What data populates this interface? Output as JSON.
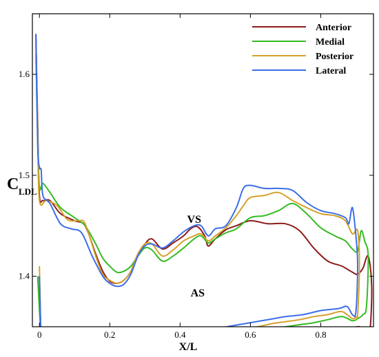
{
  "chart_data": {
    "type": "line",
    "title": "",
    "xlabel": "X/L",
    "ylabel": "C",
    "ylabel_subscript": "LDL",
    "xlim": [
      -0.02,
      0.95
    ],
    "ylim": [
      1.35,
      1.66
    ],
    "xticks": [
      0,
      0.2,
      0.4,
      0.6,
      0.8
    ],
    "xtick_labels": [
      "0",
      "0.2",
      "0.4",
      "0.6",
      "0.8"
    ],
    "yticks": [
      1.4,
      1.5,
      1.6
    ],
    "ytick_labels": [
      "1.4",
      "1.5",
      "1.6"
    ],
    "grid": false,
    "legend_position": "top-right",
    "annotations": [
      {
        "text": "VS",
        "x": 0.44,
        "y": 1.453
      },
      {
        "text": "AS",
        "x": 0.45,
        "y": 1.38
      }
    ],
    "series": [
      {
        "name": "Anterior",
        "color": "#8b1a1a",
        "upper": [
          [
            -0.01,
            1.64
          ],
          [
            -0.005,
            1.55
          ],
          [
            0,
            1.48
          ],
          [
            0.01,
            1.475
          ],
          [
            0.03,
            1.475
          ],
          [
            0.06,
            1.462
          ],
          [
            0.1,
            1.455
          ],
          [
            0.13,
            1.45
          ],
          [
            0.16,
            1.422
          ],
          [
            0.18,
            1.405
          ],
          [
            0.2,
            1.395
          ],
          [
            0.22,
            1.393
          ],
          [
            0.24,
            1.396
          ],
          [
            0.26,
            1.405
          ],
          [
            0.28,
            1.422
          ],
          [
            0.3,
            1.432
          ],
          [
            0.32,
            1.437
          ],
          [
            0.35,
            1.427
          ],
          [
            0.38,
            1.433
          ],
          [
            0.41,
            1.44
          ],
          [
            0.43,
            1.447
          ],
          [
            0.45,
            1.449
          ],
          [
            0.47,
            1.44
          ],
          [
            0.48,
            1.43
          ],
          [
            0.5,
            1.437
          ],
          [
            0.53,
            1.446
          ],
          [
            0.56,
            1.45
          ],
          [
            0.6,
            1.455
          ],
          [
            0.65,
            1.452
          ],
          [
            0.7,
            1.452
          ],
          [
            0.74,
            1.445
          ],
          [
            0.78,
            1.428
          ],
          [
            0.82,
            1.415
          ],
          [
            0.86,
            1.41
          ],
          [
            0.89,
            1.404
          ],
          [
            0.905,
            1.402
          ],
          [
            0.92,
            1.408
          ],
          [
            0.935,
            1.42
          ],
          [
            0.945,
            1.39
          ]
        ],
        "lower": [
          [
            0.945,
            1.39
          ],
          [
            0.94,
            1.346
          ],
          [
            0.93,
            1.344
          ],
          [
            0.91,
            1.35
          ],
          [
            0.88,
            1.348
          ],
          [
            0.84,
            1.347
          ],
          [
            0.8,
            1.346
          ],
          [
            0.76,
            1.344
          ],
          [
            0.72,
            1.342
          ],
          [
            0.68,
            1.341
          ],
          [
            0.64,
            1.341
          ],
          [
            0.6,
            1.34
          ],
          [
            0.56,
            1.338
          ],
          [
            0.52,
            1.336
          ],
          [
            0.5,
            1.334
          ],
          [
            0.48,
            1.333
          ],
          [
            0.44,
            1.337
          ],
          [
            0.4,
            1.338
          ],
          [
            0.36,
            1.336
          ],
          [
            0.32,
            1.337
          ],
          [
            0.28,
            1.333
          ],
          [
            0.24,
            1.331
          ],
          [
            0.2,
            1.334
          ],
          [
            0.16,
            1.336
          ],
          [
            0.12,
            1.334
          ],
          [
            0.08,
            1.333
          ],
          [
            0.04,
            1.333
          ],
          [
            0.01,
            1.33
          ],
          [
            0.005,
            1.335
          ],
          [
            0,
            1.4
          ]
        ]
      },
      {
        "name": "Medial",
        "color": "#33bb22",
        "upper": [
          [
            -0.01,
            1.62
          ],
          [
            -0.005,
            1.54
          ],
          [
            0,
            1.488
          ],
          [
            0.01,
            1.492
          ],
          [
            0.03,
            1.483
          ],
          [
            0.06,
            1.468
          ],
          [
            0.1,
            1.458
          ],
          [
            0.13,
            1.45
          ],
          [
            0.16,
            1.432
          ],
          [
            0.18,
            1.418
          ],
          [
            0.2,
            1.41
          ],
          [
            0.22,
            1.404
          ],
          [
            0.24,
            1.405
          ],
          [
            0.26,
            1.41
          ],
          [
            0.28,
            1.42
          ],
          [
            0.3,
            1.428
          ],
          [
            0.32,
            1.426
          ],
          [
            0.35,
            1.415
          ],
          [
            0.38,
            1.42
          ],
          [
            0.41,
            1.428
          ],
          [
            0.44,
            1.437
          ],
          [
            0.46,
            1.44
          ],
          [
            0.48,
            1.433
          ],
          [
            0.5,
            1.437
          ],
          [
            0.53,
            1.443
          ],
          [
            0.56,
            1.447
          ],
          [
            0.6,
            1.458
          ],
          [
            0.64,
            1.46
          ],
          [
            0.68,
            1.465
          ],
          [
            0.72,
            1.472
          ],
          [
            0.76,
            1.462
          ],
          [
            0.8,
            1.448
          ],
          [
            0.84,
            1.44
          ],
          [
            0.87,
            1.435
          ],
          [
            0.89,
            1.427
          ],
          [
            0.905,
            1.425
          ],
          [
            0.915,
            1.445
          ],
          [
            0.925,
            1.435
          ],
          [
            0.935,
            1.42
          ]
        ],
        "lower": [
          [
            0.935,
            1.42
          ],
          [
            0.93,
            1.37
          ],
          [
            0.92,
            1.362
          ],
          [
            0.905,
            1.358
          ],
          [
            0.89,
            1.356
          ],
          [
            0.86,
            1.36
          ],
          [
            0.82,
            1.357
          ],
          [
            0.78,
            1.354
          ],
          [
            0.74,
            1.352
          ],
          [
            0.7,
            1.35
          ],
          [
            0.66,
            1.348
          ],
          [
            0.62,
            1.346
          ],
          [
            0.58,
            1.344
          ],
          [
            0.54,
            1.342
          ],
          [
            0.5,
            1.34
          ],
          [
            0.47,
            1.336
          ],
          [
            0.44,
            1.335
          ],
          [
            0.4,
            1.334
          ],
          [
            0.36,
            1.333
          ],
          [
            0.32,
            1.333
          ],
          [
            0.28,
            1.332
          ],
          [
            0.24,
            1.332
          ],
          [
            0.2,
            1.334
          ],
          [
            0.16,
            1.335
          ],
          [
            0.12,
            1.334
          ],
          [
            0.08,
            1.333
          ],
          [
            0.04,
            1.332
          ],
          [
            0.01,
            1.33
          ],
          [
            0.005,
            1.336
          ],
          [
            -0.005,
            1.4
          ]
        ]
      },
      {
        "name": "Posterior",
        "color": "#d4a02a",
        "upper": [
          [
            -0.01,
            1.63
          ],
          [
            -0.005,
            1.54
          ],
          [
            0,
            1.475
          ],
          [
            0.02,
            1.475
          ],
          [
            0.05,
            1.47
          ],
          [
            0.08,
            1.456
          ],
          [
            0.11,
            1.455
          ],
          [
            0.13,
            1.452
          ],
          [
            0.16,
            1.42
          ],
          [
            0.18,
            1.402
          ],
          [
            0.2,
            1.396
          ],
          [
            0.22,
            1.393
          ],
          [
            0.24,
            1.396
          ],
          [
            0.26,
            1.405
          ],
          [
            0.28,
            1.422
          ],
          [
            0.3,
            1.432
          ],
          [
            0.32,
            1.432
          ],
          [
            0.35,
            1.42
          ],
          [
            0.38,
            1.426
          ],
          [
            0.41,
            1.435
          ],
          [
            0.44,
            1.44
          ],
          [
            0.46,
            1.442
          ],
          [
            0.48,
            1.435
          ],
          [
            0.5,
            1.44
          ],
          [
            0.53,
            1.448
          ],
          [
            0.56,
            1.46
          ],
          [
            0.58,
            1.47
          ],
          [
            0.6,
            1.478
          ],
          [
            0.64,
            1.48
          ],
          [
            0.68,
            1.483
          ],
          [
            0.72,
            1.475
          ],
          [
            0.76,
            1.468
          ],
          [
            0.8,
            1.462
          ],
          [
            0.84,
            1.46
          ],
          [
            0.87,
            1.455
          ],
          [
            0.89,
            1.442
          ],
          [
            0.905,
            1.445
          ],
          [
            0.91,
            1.41
          ]
        ],
        "lower": [
          [
            0.91,
            1.41
          ],
          [
            0.905,
            1.362
          ],
          [
            0.9,
            1.36
          ],
          [
            0.89,
            1.358
          ],
          [
            0.86,
            1.365
          ],
          [
            0.82,
            1.362
          ],
          [
            0.78,
            1.36
          ],
          [
            0.74,
            1.357
          ],
          [
            0.7,
            1.355
          ],
          [
            0.66,
            1.353
          ],
          [
            0.62,
            1.35
          ],
          [
            0.58,
            1.348
          ],
          [
            0.54,
            1.346
          ],
          [
            0.5,
            1.343
          ],
          [
            0.47,
            1.34
          ],
          [
            0.44,
            1.334
          ],
          [
            0.4,
            1.333
          ],
          [
            0.36,
            1.333
          ],
          [
            0.32,
            1.333
          ],
          [
            0.28,
            1.332
          ],
          [
            0.24,
            1.333
          ],
          [
            0.2,
            1.335
          ],
          [
            0.16,
            1.335
          ],
          [
            0.12,
            1.334
          ],
          [
            0.08,
            1.333
          ],
          [
            0.04,
            1.332
          ],
          [
            0.01,
            1.33
          ],
          [
            0.005,
            1.336
          ],
          [
            0,
            1.41
          ]
        ]
      },
      {
        "name": "Lateral",
        "color": "#3a6ee8",
        "upper": [
          [
            -0.01,
            1.64
          ],
          [
            -0.005,
            1.53
          ],
          [
            0,
            1.508
          ],
          [
            0.005,
            1.505
          ],
          [
            0.01,
            1.48
          ],
          [
            0.03,
            1.472
          ],
          [
            0.06,
            1.452
          ],
          [
            0.09,
            1.447
          ],
          [
            0.12,
            1.443
          ],
          [
            0.15,
            1.42
          ],
          [
            0.18,
            1.4
          ],
          [
            0.2,
            1.393
          ],
          [
            0.22,
            1.39
          ],
          [
            0.24,
            1.392
          ],
          [
            0.26,
            1.402
          ],
          [
            0.28,
            1.42
          ],
          [
            0.3,
            1.43
          ],
          [
            0.32,
            1.432
          ],
          [
            0.35,
            1.428
          ],
          [
            0.38,
            1.435
          ],
          [
            0.41,
            1.444
          ],
          [
            0.44,
            1.45
          ],
          [
            0.46,
            1.45
          ],
          [
            0.48,
            1.44
          ],
          [
            0.5,
            1.447
          ],
          [
            0.53,
            1.45
          ],
          [
            0.56,
            1.468
          ],
          [
            0.58,
            1.487
          ],
          [
            0.6,
            1.49
          ],
          [
            0.64,
            1.487
          ],
          [
            0.68,
            1.487
          ],
          [
            0.72,
            1.485
          ],
          [
            0.76,
            1.473
          ],
          [
            0.8,
            1.465
          ],
          [
            0.84,
            1.462
          ],
          [
            0.87,
            1.458
          ],
          [
            0.88,
            1.452
          ],
          [
            0.89,
            1.468
          ],
          [
            0.9,
            1.44
          ],
          [
            0.905,
            1.41
          ]
        ],
        "lower": [
          [
            0.905,
            1.41
          ],
          [
            0.9,
            1.365
          ],
          [
            0.89,
            1.362
          ],
          [
            0.875,
            1.37
          ],
          [
            0.85,
            1.368
          ],
          [
            0.8,
            1.366
          ],
          [
            0.75,
            1.362
          ],
          [
            0.7,
            1.36
          ],
          [
            0.65,
            1.357
          ],
          [
            0.6,
            1.354
          ],
          [
            0.55,
            1.351
          ],
          [
            0.5,
            1.348
          ],
          [
            0.47,
            1.347
          ],
          [
            0.45,
            1.34
          ],
          [
            0.42,
            1.336
          ],
          [
            0.38,
            1.334
          ],
          [
            0.34,
            1.333
          ],
          [
            0.3,
            1.333
          ],
          [
            0.26,
            1.332
          ],
          [
            0.22,
            1.332
          ],
          [
            0.18,
            1.334
          ],
          [
            0.14,
            1.334
          ],
          [
            0.1,
            1.333
          ],
          [
            0.06,
            1.332
          ],
          [
            0.02,
            1.331
          ],
          [
            0.01,
            1.33
          ],
          [
            0.005,
            1.336
          ],
          [
            0,
            1.4
          ]
        ]
      }
    ]
  }
}
